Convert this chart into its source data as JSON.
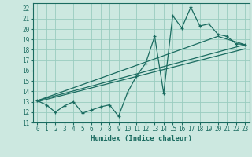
{
  "xlabel": "Humidex (Indice chaleur)",
  "ylabel": "",
  "bg_color": "#cce8e0",
  "grid_color": "#99ccbf",
  "line_color": "#1a6b60",
  "xlim": [
    -0.5,
    23.5
  ],
  "ylim": [
    11,
    22.5
  ],
  "xticks": [
    0,
    1,
    2,
    3,
    4,
    5,
    6,
    7,
    8,
    9,
    10,
    11,
    12,
    13,
    14,
    15,
    16,
    17,
    18,
    19,
    20,
    21,
    22,
    23
  ],
  "yticks": [
    11,
    12,
    13,
    14,
    15,
    16,
    17,
    18,
    19,
    20,
    21,
    22
  ],
  "data_x": [
    0,
    1,
    2,
    3,
    4,
    5,
    6,
    7,
    8,
    9,
    10,
    11,
    12,
    13,
    14,
    15,
    16,
    17,
    18,
    19,
    20,
    21,
    22,
    23
  ],
  "data_y": [
    13.1,
    12.7,
    12.0,
    12.6,
    13.0,
    11.9,
    12.2,
    12.5,
    12.7,
    11.6,
    13.9,
    15.5,
    16.7,
    19.3,
    13.8,
    21.3,
    20.1,
    22.1,
    20.3,
    20.5,
    19.5,
    19.3,
    18.6,
    18.5
  ],
  "line1_x": [
    0,
    23
  ],
  "line1_y": [
    13.1,
    18.5
  ],
  "line2_x": [
    0,
    20,
    23
  ],
  "line2_y": [
    13.1,
    19.3,
    18.5
  ],
  "line3_x": [
    0,
    23
  ],
  "line3_y": [
    13.0,
    18.1
  ]
}
